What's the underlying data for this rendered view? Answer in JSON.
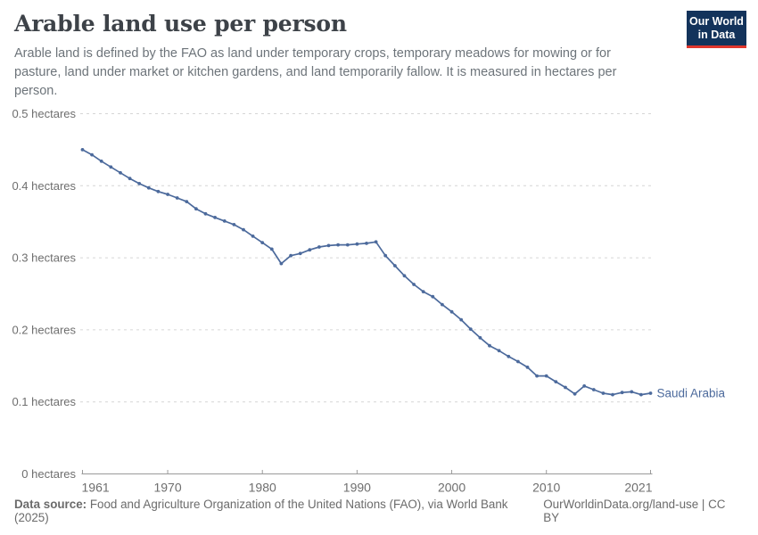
{
  "header": {
    "title": "Arable land use per person",
    "subtitle": "Arable land is defined by the FAO as land under temporary crops, temporary meadows for mowing or for pasture, land under market or kitchen gardens, and land temporarily fallow. It is measured in hectares per person.",
    "logo": {
      "line1": "Our World",
      "line2": "in Data"
    }
  },
  "chart_data": {
    "type": "line",
    "title": "Arable land use per person",
    "xlabel": "",
    "ylabel": "hectares",
    "unit": "hectares",
    "xlim": [
      1961,
      2021
    ],
    "ylim": [
      0,
      0.5
    ],
    "grid": "horizontal-dashed",
    "legend_position": "end-of-line-label",
    "x_ticks": [
      {
        "value": 1961,
        "label": "1961"
      },
      {
        "value": 1970,
        "label": "1970"
      },
      {
        "value": 1980,
        "label": "1980"
      },
      {
        "value": 1990,
        "label": "1990"
      },
      {
        "value": 2000,
        "label": "2000"
      },
      {
        "value": 2010,
        "label": "2010"
      },
      {
        "value": 2021,
        "label": "2021"
      }
    ],
    "y_ticks": [
      {
        "value": 0,
        "label": "0 hectares"
      },
      {
        "value": 0.1,
        "label": "0.1 hectares"
      },
      {
        "value": 0.2,
        "label": "0.2 hectares"
      },
      {
        "value": 0.3,
        "label": "0.3 hectares"
      },
      {
        "value": 0.4,
        "label": "0.4 hectares"
      },
      {
        "value": 0.5,
        "label": "0.5 hectares"
      }
    ],
    "series": [
      {
        "name": "Saudi Arabia",
        "color": "#4c6a9c",
        "x": [
          1961,
          1962,
          1963,
          1964,
          1965,
          1966,
          1967,
          1968,
          1969,
          1970,
          1971,
          1972,
          1973,
          1974,
          1975,
          1976,
          1977,
          1978,
          1979,
          1980,
          1981,
          1982,
          1983,
          1984,
          1985,
          1986,
          1987,
          1988,
          1989,
          1990,
          1991,
          1992,
          1993,
          1994,
          1995,
          1996,
          1997,
          1998,
          1999,
          2000,
          2001,
          2002,
          2003,
          2004,
          2005,
          2006,
          2007,
          2008,
          2009,
          2010,
          2011,
          2012,
          2013,
          2014,
          2015,
          2016,
          2017,
          2018,
          2019,
          2020,
          2021
        ],
        "values": [
          0.45,
          0.443,
          0.434,
          0.426,
          0.418,
          0.41,
          0.403,
          0.397,
          0.392,
          0.388,
          0.383,
          0.378,
          0.368,
          0.361,
          0.356,
          0.351,
          0.346,
          0.339,
          0.33,
          0.321,
          0.312,
          0.292,
          0.303,
          0.306,
          0.311,
          0.315,
          0.317,
          0.318,
          0.318,
          0.319,
          0.32,
          0.322,
          0.303,
          0.289,
          0.275,
          0.263,
          0.253,
          0.246,
          0.235,
          0.225,
          0.214,
          0.201,
          0.189,
          0.178,
          0.171,
          0.163,
          0.156,
          0.148,
          0.136,
          0.136,
          0.128,
          0.12,
          0.111,
          0.122,
          0.117,
          0.112,
          0.11,
          0.113,
          0.114,
          0.11,
          0.112
        ]
      }
    ],
    "colors": {
      "accent": "#4c6a9c",
      "grid": "#d6d6d6",
      "axis": "#9a9a9a",
      "tick_text": "#6e6e6e"
    }
  },
  "footer": {
    "source_label": "Data source:",
    "source_text": " Food and Agriculture Organization of the United Nations (FAO), via World Bank (2025)",
    "credit": "OurWorldinData.org/land-use | CC BY"
  }
}
